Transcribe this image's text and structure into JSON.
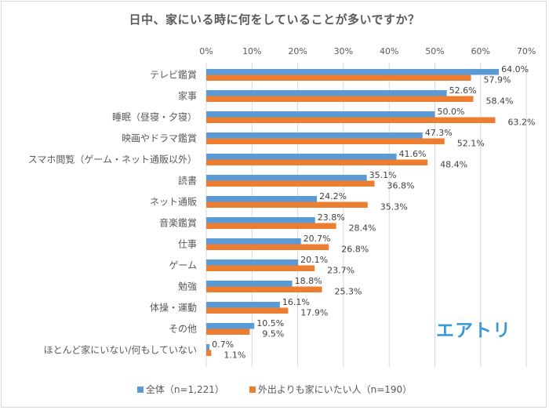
{
  "chart_data": {
    "type": "bar",
    "orientation": "horizontal",
    "title": "日中、家にいる時に何をしていることが多いですか？",
    "xlabel": "",
    "ylabel": "",
    "xlim": [
      0,
      70
    ],
    "x_ticks": [
      "0%",
      "10%",
      "20%",
      "30%",
      "40%",
      "50%",
      "60%",
      "70%"
    ],
    "x_tick_values": [
      0,
      10,
      20,
      30,
      40,
      50,
      60,
      70
    ],
    "grid": true,
    "legend_position": "bottom",
    "categories": [
      "テレビ鑑賞",
      "家事",
      "睡眠（昼寝・夕寝）",
      "映画やドラマ鑑賞",
      "スマホ閲覧（ゲーム・ネット通販以外）",
      "読書",
      "ネット通販",
      "音楽鑑賞",
      "仕事",
      "ゲーム",
      "勉強",
      "体操・運動",
      "その他",
      "ほとんど家にいない/何もしていない"
    ],
    "series": [
      {
        "name": "全体（n=1,221）",
        "color": "#5b9bd5",
        "values": [
          64.0,
          52.6,
          50.0,
          47.3,
          41.6,
          35.1,
          24.2,
          23.8,
          20.7,
          20.1,
          18.8,
          16.1,
          10.5,
          0.7
        ],
        "labels": [
          "64.0%",
          "52.6%",
          "50.0%",
          "47.3%",
          "41.6%",
          "35.1%",
          "24.2%",
          "23.8%",
          "20.7%",
          "20.1%",
          "18.8%",
          "16.1%",
          "10.5%",
          "0.7%"
        ]
      },
      {
        "name": "外出よりも家にいたい人（n=190）",
        "color": "#ed7d31",
        "values": [
          57.9,
          58.4,
          63.2,
          52.1,
          48.4,
          36.8,
          35.3,
          28.4,
          26.8,
          23.7,
          25.3,
          17.9,
          9.5,
          1.1
        ],
        "labels": [
          "57.9%",
          "58.4%",
          "63.2%",
          "52.1%",
          "48.4%",
          "36.8%",
          "35.3%",
          "28.4%",
          "26.8%",
          "23.7%",
          "25.3%",
          "17.9%",
          "9.5%",
          "1.1%"
        ]
      }
    ]
  },
  "logo": {
    "text": "エアトリ",
    "color": "#3a9ad9"
  }
}
